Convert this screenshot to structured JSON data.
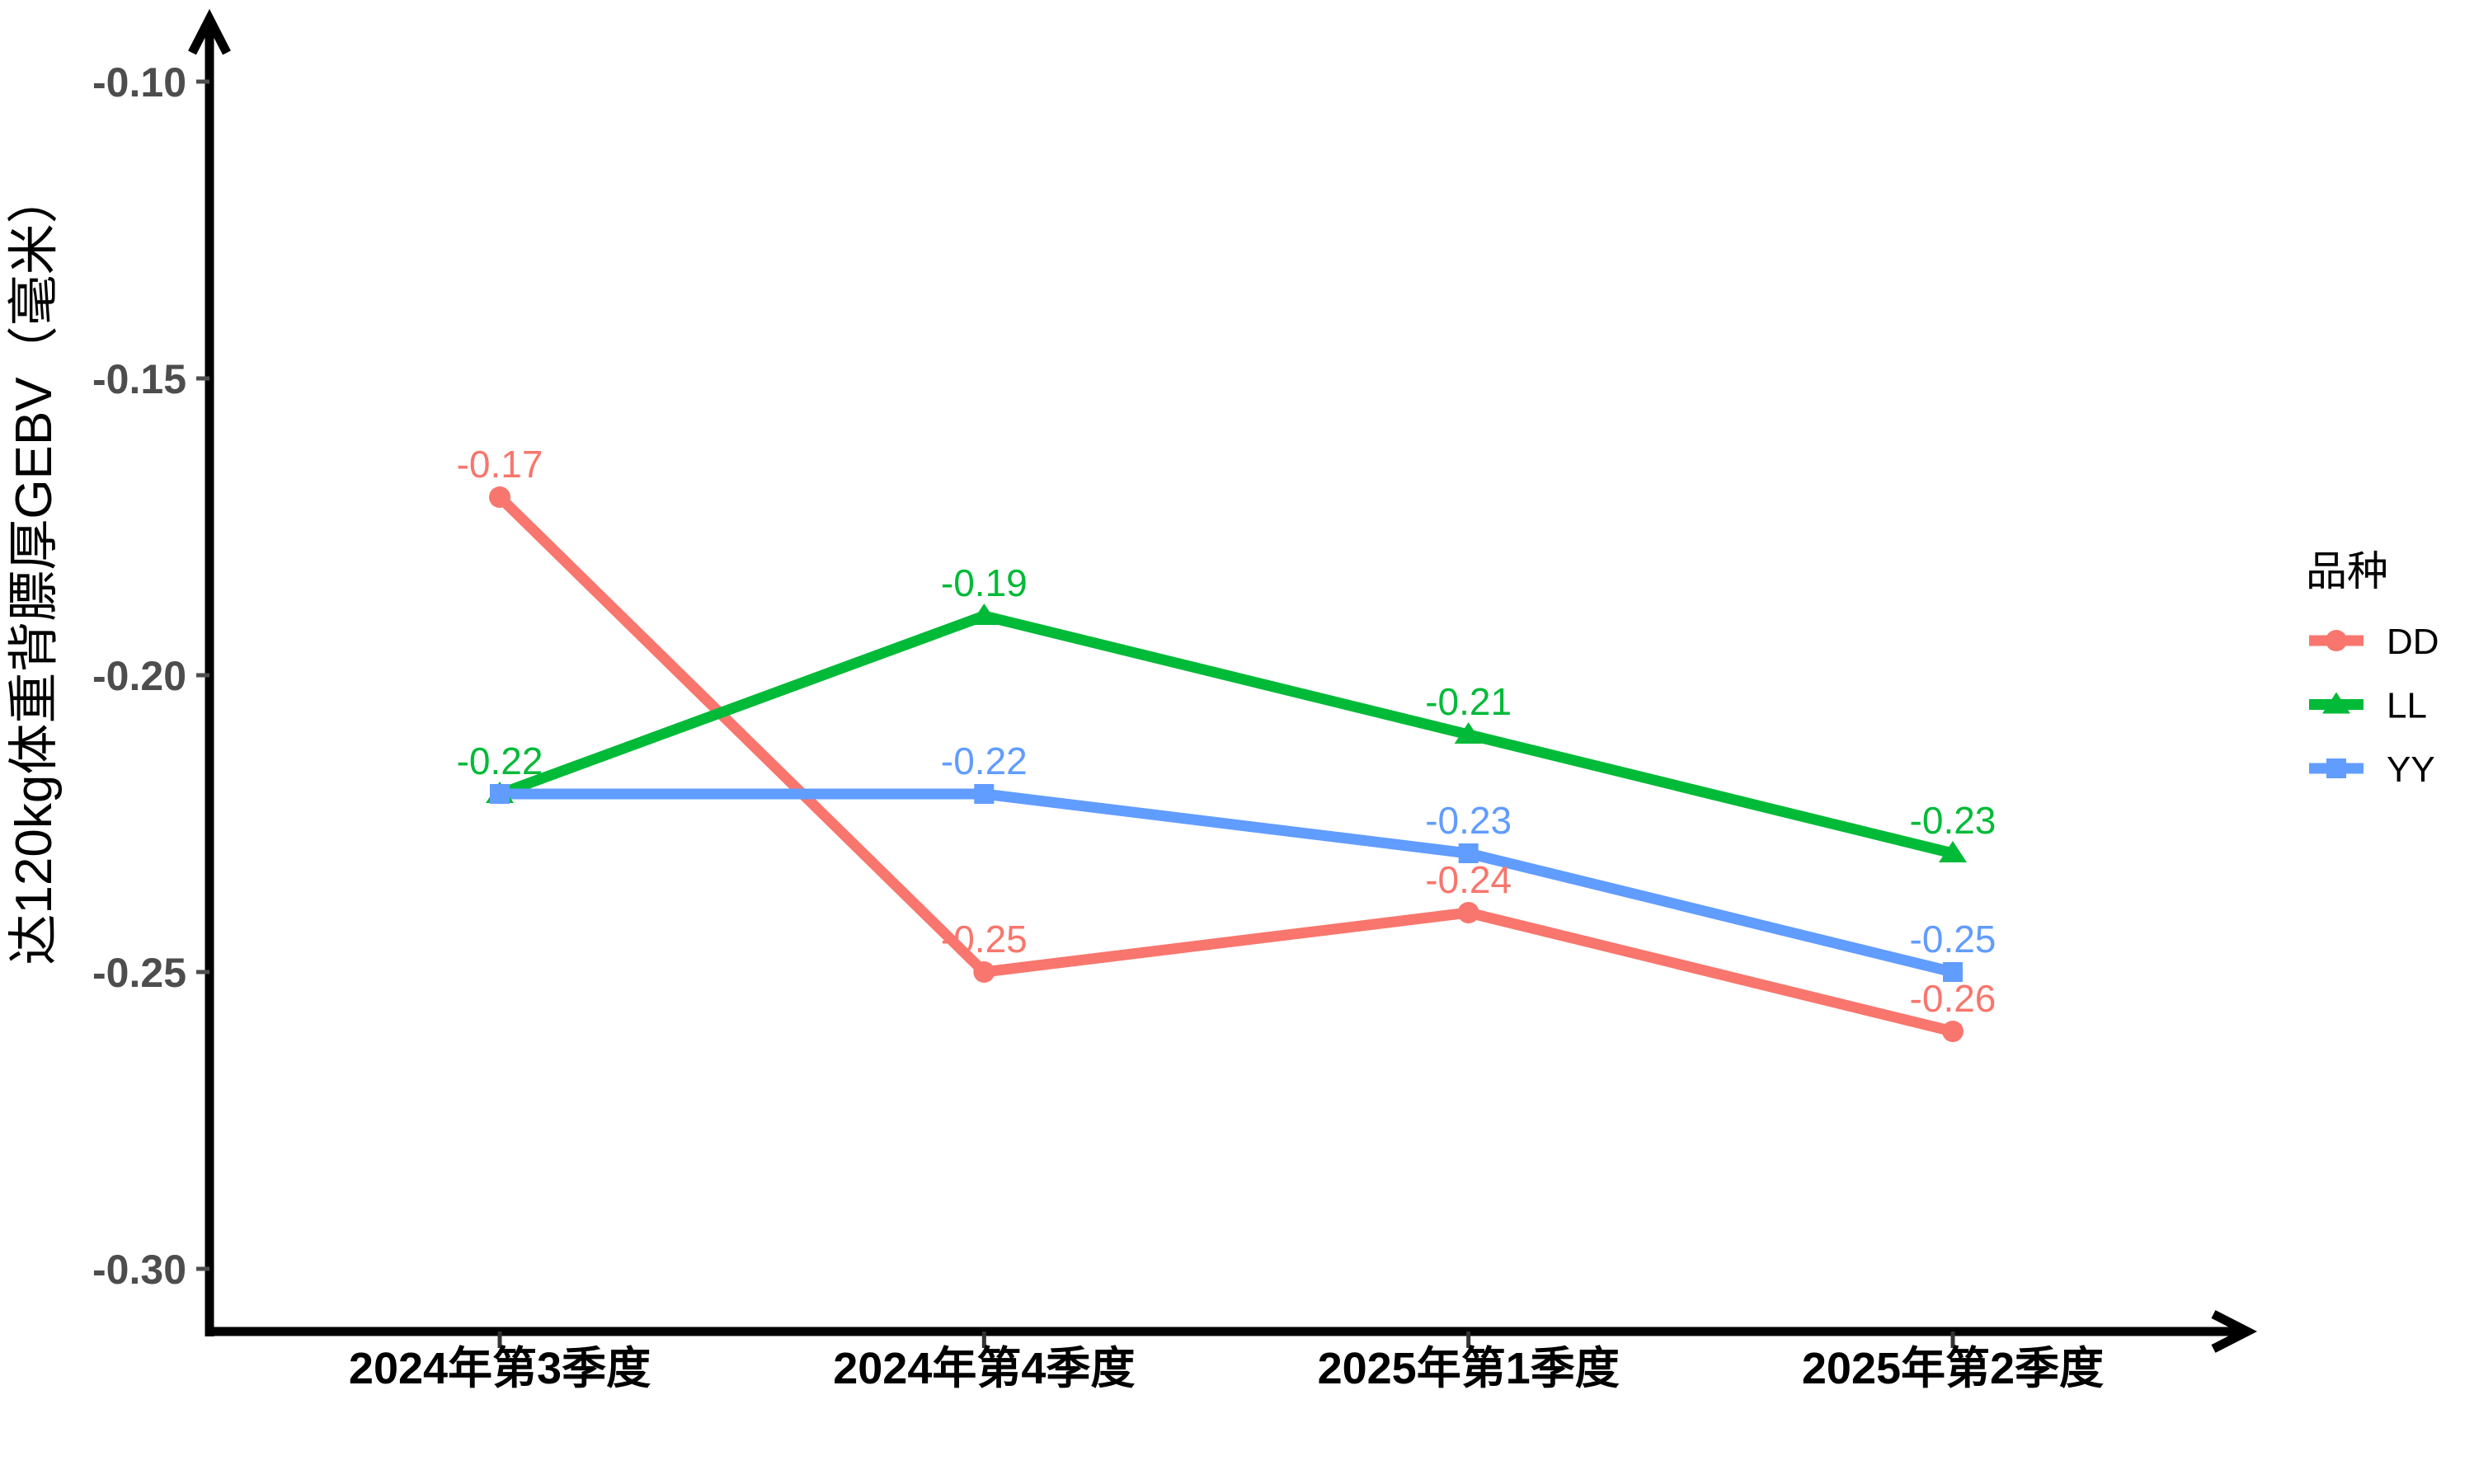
{
  "chart_data": {
    "type": "line",
    "title": "",
    "xlabel": "",
    "ylabel": "达120kg体重背膘厚GEBV（毫米）",
    "categories": [
      "2024年第3季度",
      "2024年第4季度",
      "2025年第1季度",
      "2025年第2季度"
    ],
    "y_ticks": [
      "-0.10",
      "-0.15",
      "-0.20",
      "-0.25",
      "-0.30"
    ],
    "ylim": [
      -0.31,
      -0.09
    ],
    "grid": "off",
    "legend": {
      "title": "品种",
      "position": "right"
    },
    "series": [
      {
        "name": "DD",
        "color": "#F8766D",
        "marker": "circle",
        "values": [
          -0.17,
          -0.25,
          -0.24,
          -0.26
        ],
        "labels": [
          "-0.17",
          "-0.25",
          "-0.24",
          "-0.26"
        ],
        "label_visible": [
          true,
          true,
          true,
          true
        ]
      },
      {
        "name": "LL",
        "color": "#00BA38",
        "marker": "triangle",
        "values": [
          -0.22,
          -0.19,
          -0.21,
          -0.23
        ],
        "labels": [
          "-0.22",
          "-0.19",
          "-0.21",
          "-0.23"
        ],
        "label_visible": [
          true,
          true,
          true,
          true
        ]
      },
      {
        "name": "YY",
        "color": "#619CFF",
        "marker": "square",
        "values": [
          -0.22,
          -0.22,
          -0.23,
          -0.25
        ],
        "labels": [
          "-0.22",
          "-0.22",
          "-0.23",
          "-0.25"
        ],
        "label_visible": [
          false,
          true,
          true,
          true
        ]
      }
    ],
    "axis_color": "#000000",
    "tick_label_color": "#4D4D4D"
  }
}
